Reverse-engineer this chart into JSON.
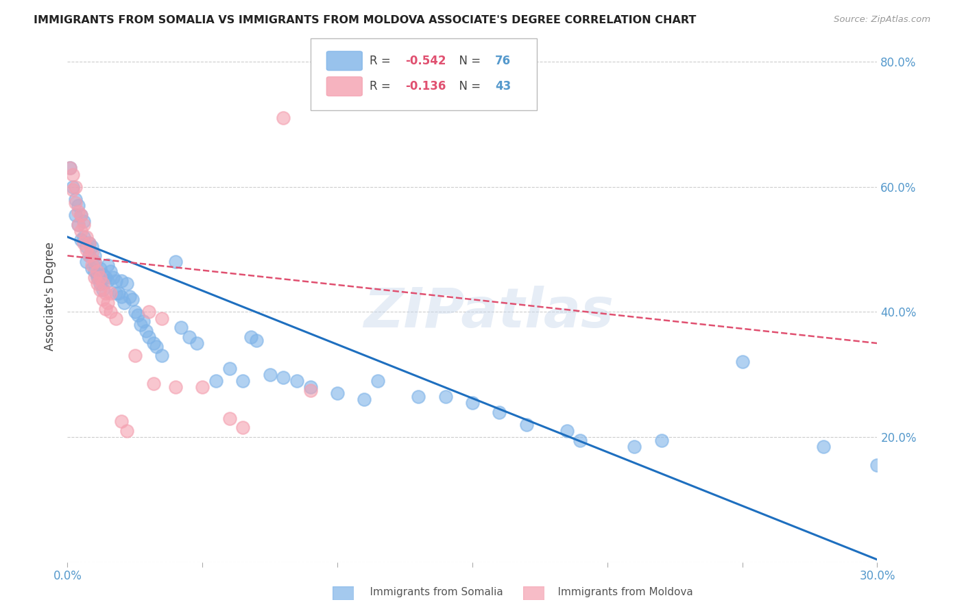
{
  "title": "IMMIGRANTS FROM SOMALIA VS IMMIGRANTS FROM MOLDOVA ASSOCIATE'S DEGREE CORRELATION CHART",
  "source": "Source: ZipAtlas.com",
  "ylabel": "Associate's Degree",
  "xlim": [
    0.0,
    0.3
  ],
  "ylim": [
    0.0,
    0.85
  ],
  "yticks": [
    0.0,
    0.2,
    0.4,
    0.6,
    0.8
  ],
  "xticks": [
    0.0,
    0.05,
    0.1,
    0.15,
    0.2,
    0.25,
    0.3
  ],
  "somalia_color": "#7EB3E8",
  "moldova_color": "#F4A0B0",
  "somalia_line_color": "#1E6FBF",
  "moldova_line_color": "#E05070",
  "watermark": "ZIPatlas",
  "legend_somalia_R": "-0.542",
  "legend_somalia_N": "76",
  "legend_moldova_R": "-0.136",
  "legend_moldova_N": "43",
  "somalia_scatter": [
    [
      0.001,
      0.63
    ],
    [
      0.002,
      0.6
    ],
    [
      0.003,
      0.58
    ],
    [
      0.003,
      0.555
    ],
    [
      0.004,
      0.57
    ],
    [
      0.004,
      0.54
    ],
    [
      0.005,
      0.555
    ],
    [
      0.005,
      0.515
    ],
    [
      0.006,
      0.545
    ],
    [
      0.006,
      0.52
    ],
    [
      0.007,
      0.505
    ],
    [
      0.007,
      0.48
    ],
    [
      0.008,
      0.51
    ],
    [
      0.008,
      0.49
    ],
    [
      0.009,
      0.505
    ],
    [
      0.009,
      0.47
    ],
    [
      0.01,
      0.49
    ],
    [
      0.01,
      0.465
    ],
    [
      0.01,
      0.48
    ],
    [
      0.011,
      0.46
    ],
    [
      0.011,
      0.455
    ],
    [
      0.012,
      0.47
    ],
    [
      0.012,
      0.445
    ],
    [
      0.013,
      0.46
    ],
    [
      0.013,
      0.435
    ],
    [
      0.014,
      0.455
    ],
    [
      0.015,
      0.45
    ],
    [
      0.015,
      0.475
    ],
    [
      0.016,
      0.465
    ],
    [
      0.017,
      0.455
    ],
    [
      0.018,
      0.45
    ],
    [
      0.018,
      0.43
    ],
    [
      0.019,
      0.43
    ],
    [
      0.02,
      0.45
    ],
    [
      0.02,
      0.425
    ],
    [
      0.021,
      0.415
    ],
    [
      0.022,
      0.445
    ],
    [
      0.023,
      0.425
    ],
    [
      0.024,
      0.42
    ],
    [
      0.025,
      0.4
    ],
    [
      0.026,
      0.395
    ],
    [
      0.027,
      0.38
    ],
    [
      0.028,
      0.385
    ],
    [
      0.029,
      0.37
    ],
    [
      0.03,
      0.36
    ],
    [
      0.032,
      0.35
    ],
    [
      0.033,
      0.345
    ],
    [
      0.035,
      0.33
    ],
    [
      0.04,
      0.48
    ],
    [
      0.042,
      0.375
    ],
    [
      0.045,
      0.36
    ],
    [
      0.048,
      0.35
    ],
    [
      0.055,
      0.29
    ],
    [
      0.06,
      0.31
    ],
    [
      0.065,
      0.29
    ],
    [
      0.068,
      0.36
    ],
    [
      0.07,
      0.355
    ],
    [
      0.075,
      0.3
    ],
    [
      0.08,
      0.295
    ],
    [
      0.085,
      0.29
    ],
    [
      0.09,
      0.28
    ],
    [
      0.1,
      0.27
    ],
    [
      0.11,
      0.26
    ],
    [
      0.115,
      0.29
    ],
    [
      0.13,
      0.265
    ],
    [
      0.14,
      0.265
    ],
    [
      0.15,
      0.255
    ],
    [
      0.16,
      0.24
    ],
    [
      0.17,
      0.22
    ],
    [
      0.185,
      0.21
    ],
    [
      0.19,
      0.195
    ],
    [
      0.21,
      0.185
    ],
    [
      0.22,
      0.195
    ],
    [
      0.25,
      0.32
    ],
    [
      0.28,
      0.185
    ],
    [
      0.3,
      0.155
    ]
  ],
  "moldova_scatter": [
    [
      0.001,
      0.63
    ],
    [
      0.002,
      0.62
    ],
    [
      0.002,
      0.595
    ],
    [
      0.003,
      0.6
    ],
    [
      0.003,
      0.575
    ],
    [
      0.004,
      0.56
    ],
    [
      0.004,
      0.54
    ],
    [
      0.005,
      0.555
    ],
    [
      0.005,
      0.53
    ],
    [
      0.006,
      0.54
    ],
    [
      0.006,
      0.51
    ],
    [
      0.007,
      0.52
    ],
    [
      0.007,
      0.5
    ],
    [
      0.008,
      0.51
    ],
    [
      0.008,
      0.49
    ],
    [
      0.009,
      0.495
    ],
    [
      0.009,
      0.475
    ],
    [
      0.01,
      0.48
    ],
    [
      0.01,
      0.455
    ],
    [
      0.011,
      0.465
    ],
    [
      0.011,
      0.445
    ],
    [
      0.012,
      0.455
    ],
    [
      0.012,
      0.435
    ],
    [
      0.013,
      0.445
    ],
    [
      0.013,
      0.42
    ],
    [
      0.014,
      0.43
    ],
    [
      0.014,
      0.405
    ],
    [
      0.015,
      0.415
    ],
    [
      0.016,
      0.43
    ],
    [
      0.016,
      0.4
    ],
    [
      0.018,
      0.39
    ],
    [
      0.02,
      0.225
    ],
    [
      0.022,
      0.21
    ],
    [
      0.025,
      0.33
    ],
    [
      0.03,
      0.4
    ],
    [
      0.032,
      0.285
    ],
    [
      0.035,
      0.39
    ],
    [
      0.04,
      0.28
    ],
    [
      0.05,
      0.28
    ],
    [
      0.06,
      0.23
    ],
    [
      0.065,
      0.215
    ],
    [
      0.08,
      0.71
    ],
    [
      0.09,
      0.275
    ]
  ],
  "somalia_trendline": [
    [
      0.0,
      0.52
    ],
    [
      0.3,
      0.004
    ]
  ],
  "moldova_trendline": [
    [
      0.0,
      0.49
    ],
    [
      0.3,
      0.35
    ]
  ]
}
